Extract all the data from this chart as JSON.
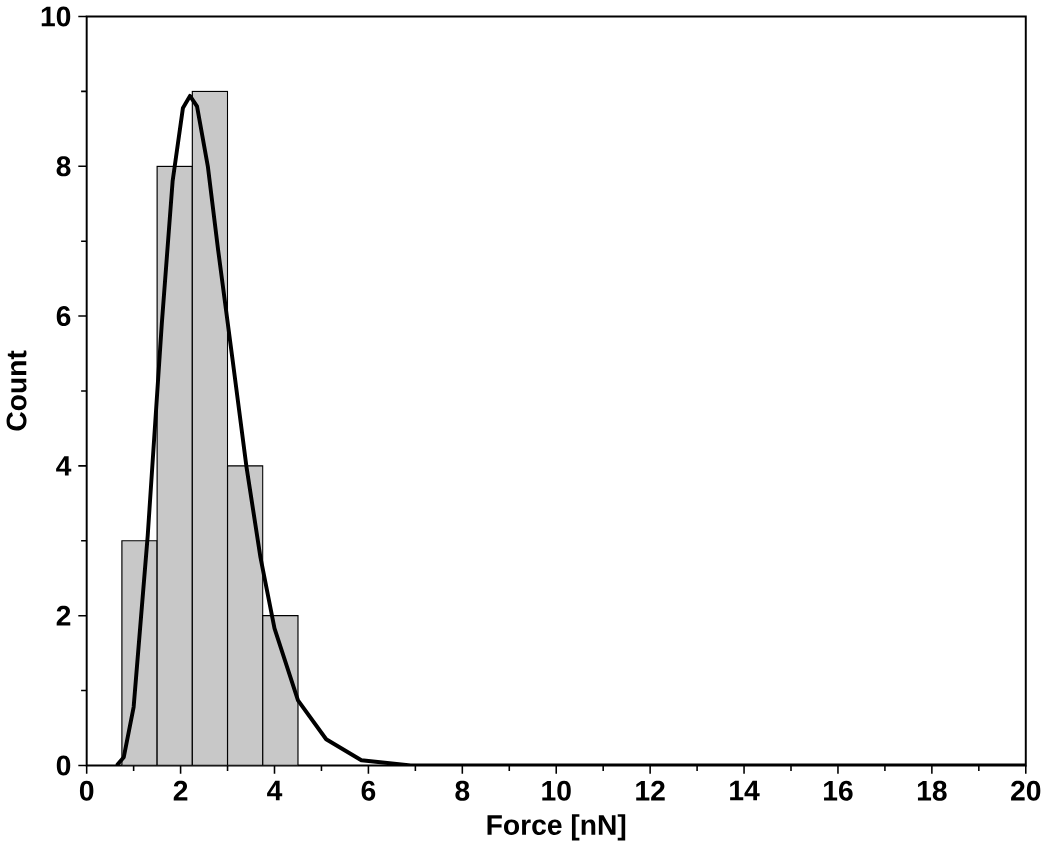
{
  "chart_data": {
    "type": "histogram",
    "xlabel": "Force [nN]",
    "ylabel": "Count",
    "bins": [
      0.75,
      1.5,
      2.25,
      3,
      3.75,
      4.5
    ],
    "values": [
      3,
      8,
      9,
      4,
      2
    ],
    "color": "#c8c8c8",
    "series": [
      {
        "type": "line",
        "color": "#000000",
        "x": [
          0.64,
          0.79,
          1.0,
          1.3,
          1.6,
          1.83,
          2.05,
          2.2,
          2.35,
          2.58,
          2.8,
          3.1,
          3.4,
          3.7,
          4.0,
          4.5,
          5.1,
          5.85,
          6.9,
          10,
          15,
          20
        ],
        "values": [
          0,
          0.11,
          0.78,
          3.07,
          5.9,
          7.8,
          8.78,
          8.94,
          8.8,
          8.0,
          6.88,
          5.45,
          4.0,
          2.78,
          1.83,
          0.87,
          0.35,
          0.07,
          0,
          0,
          0,
          0
        ]
      }
    ],
    "xlim": [
      0,
      20
    ],
    "ylim": [
      0,
      10
    ],
    "xticks": [
      0,
      2,
      4,
      6,
      8,
      10,
      12,
      14,
      16,
      18,
      20
    ],
    "yticks": [
      0,
      2,
      4,
      6,
      8,
      10
    ]
  }
}
